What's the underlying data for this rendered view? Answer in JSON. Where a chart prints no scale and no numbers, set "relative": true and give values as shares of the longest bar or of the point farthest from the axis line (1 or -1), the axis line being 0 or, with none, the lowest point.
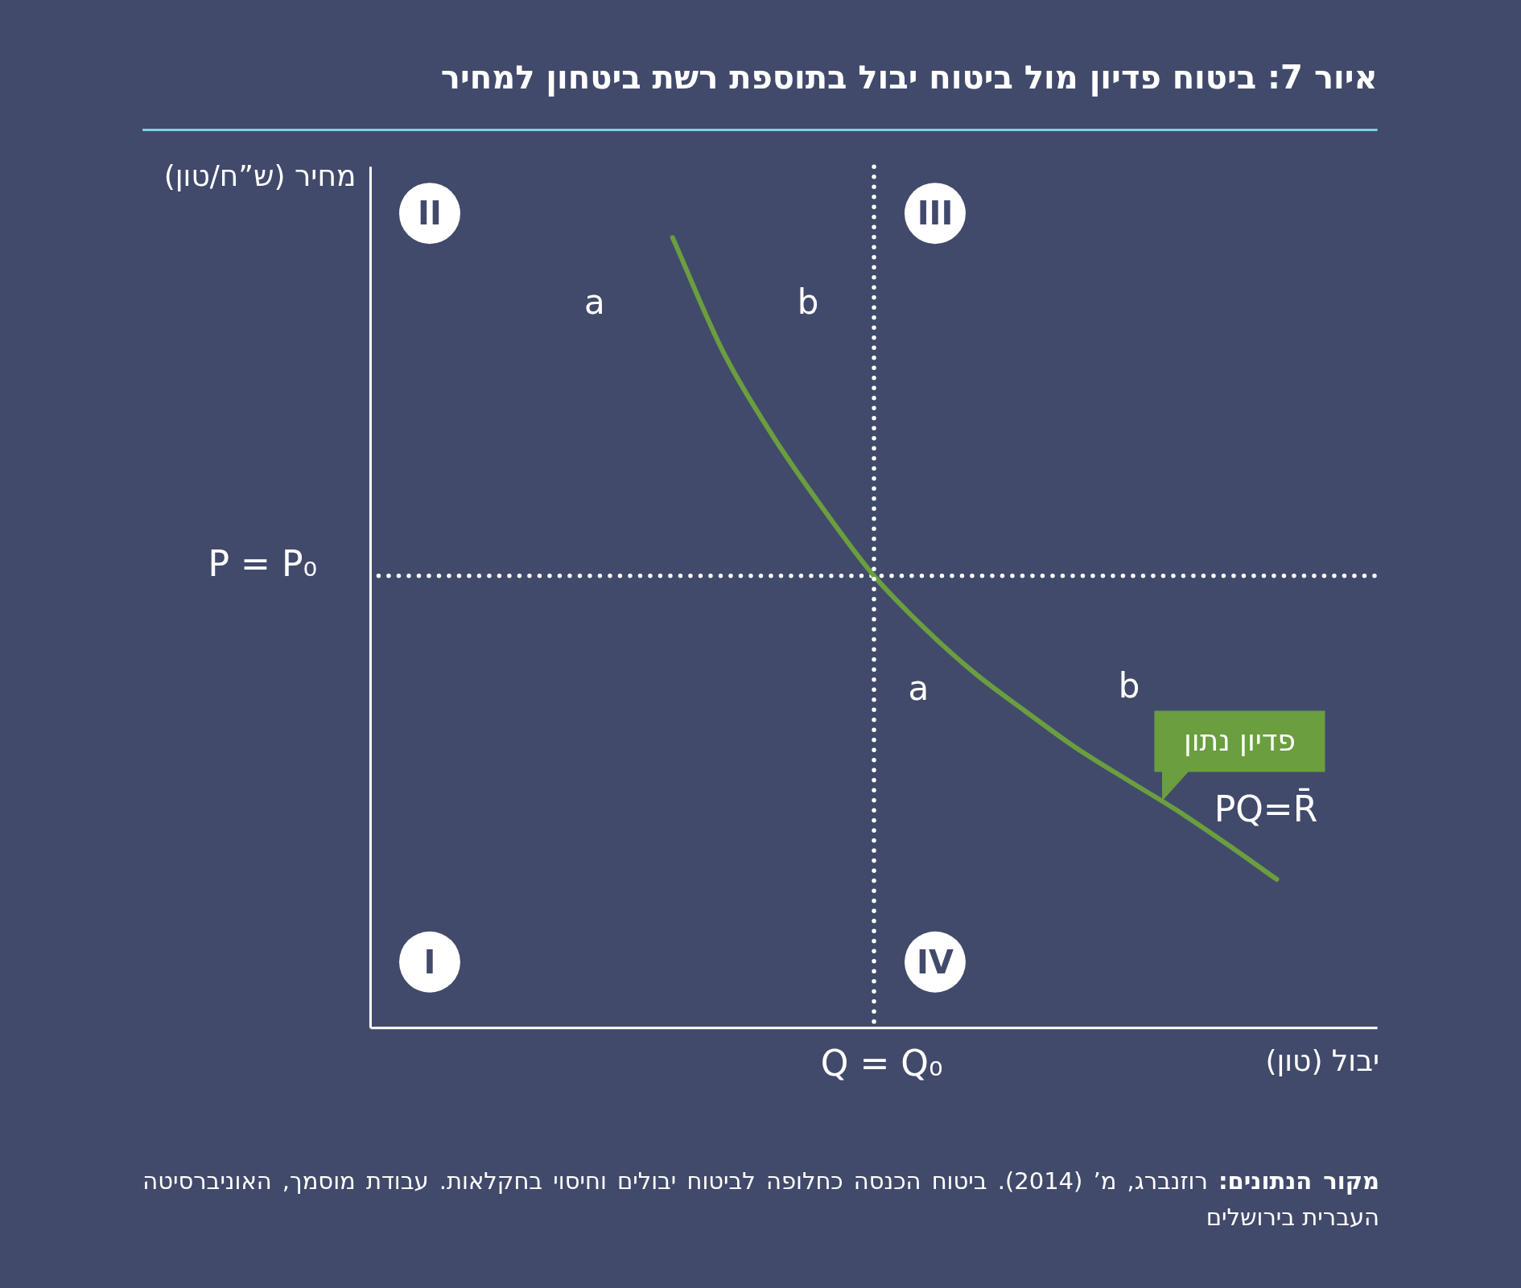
{
  "chart_data": {
    "type": "line",
    "relative": true,
    "title": "איור 7: ביטוח פדיון מול ביטוח יבול בתוספת רשת ביטחון למחיר",
    "xlabel": "יבול (טון)",
    "ylabel": "מחיר (ש”ח/טון)",
    "categories": [
      null,
      null,
      null,
      null,
      null,
      null,
      null,
      null,
      null,
      null,
      null,
      null,
      null,
      null,
      null,
      null,
      null,
      null,
      null,
      null,
      null
    ],
    "series": [
      {
        "name": "פדיון נתון",
        "color": "#6a9e3f",
        "values": [
          null,
          null,
          null,
          null,
          null,
          null,
          1,
          0.856,
          0.748,
          0.656,
          0.572,
          0.506,
          0.449,
          0.401,
          0.355,
          0.315,
          0.276,
          0.233,
          0.188,
          null,
          null
        ]
      }
    ],
    "ref_lines": [
      {
        "axis": "y",
        "value": 0.572,
        "label": "P = P₀",
        "color": "#ffffff",
        "line_style": "dotted"
      }
    ],
    "annotations": [
      "I",
      "II",
      "III",
      "IV",
      "a",
      "b",
      "a",
      "b",
      "PQ=R̄",
      "Q = Q₀",
      "**מקור הנתונים:** רוזנברג, מ’ (2014). ביטוח הכנסה כחלופה לביטוח יבולים וחיסוי בחקלאות. עבודת מוסמך, האוניברסיטה העברית בירושלים"
    ]
  }
}
